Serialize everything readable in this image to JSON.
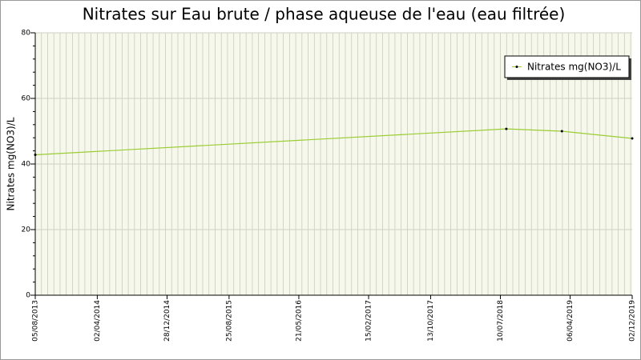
{
  "chart_data": {
    "type": "line",
    "title": "Nitrates sur Eau brute / phase aqueuse de l'eau (eau filtrée)",
    "y_label": "Nitrates mg(NO3)/L",
    "x": [
      "05/08/2013",
      "02/08/2018",
      "05/03/2019",
      "02/12/2019"
    ],
    "series": [
      {
        "name": "Nitrates mg(NO3)/L",
        "color": "#9acd32",
        "values": [
          42.8,
          50.7,
          50.0,
          47.8
        ]
      }
    ],
    "xlim": [
      "05/08/2013",
      "02/12/2019"
    ],
    "xticks": [
      "05/08/2013",
      "02/04/2014",
      "28/12/2014",
      "25/08/2015",
      "21/05/2016",
      "15/02/2017",
      "13/10/2017",
      "10/07/2018",
      "06/04/2019",
      "02/12/2019"
    ],
    "ylim": [
      0,
      80
    ],
    "yticks": [
      0,
      20,
      40,
      60,
      80
    ],
    "grid": true,
    "legend": "top-right"
  }
}
